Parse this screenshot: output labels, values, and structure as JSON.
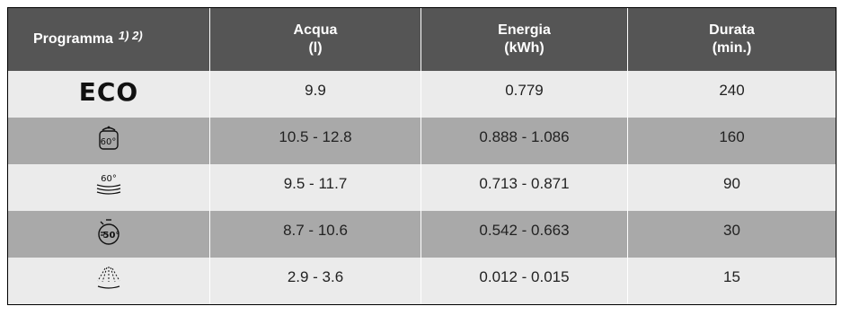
{
  "header": {
    "program": "Programma",
    "program_note": "1) 2)",
    "water_line1": "Acqua",
    "water_line2": "(l)",
    "energy_line1": "Energia",
    "energy_line2": "(kWh)",
    "duration_line1": "Durata",
    "duration_line2": "(min.)"
  },
  "rows": [
    {
      "program": "ECO",
      "icon": "eco-text",
      "water": "9.9",
      "energy": "0.779",
      "duration": "240"
    },
    {
      "program": "60°",
      "icon": "pot-60-icon",
      "water": "10.5 - 12.8",
      "energy": "0.888 - 1.086",
      "duration": "160"
    },
    {
      "program": "60°",
      "icon": "dishes-60-icon",
      "water": "9.5 - 11.7",
      "energy": "0.713 - 0.871",
      "duration": "90"
    },
    {
      "program": "50°",
      "icon": "timer-50-icon",
      "water": "8.7 - 10.6",
      "energy": "0.542 - 0.663",
      "duration": "30"
    },
    {
      "program": "",
      "icon": "rinse-spray-icon",
      "water": "2.9 - 3.6",
      "energy": "0.012 - 0.015",
      "duration": "15"
    }
  ]
}
